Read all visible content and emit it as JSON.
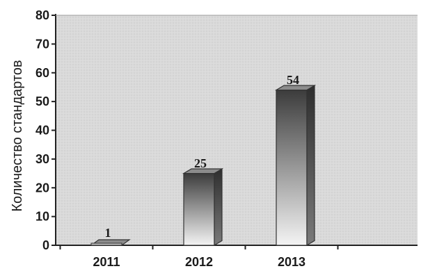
{
  "chart_data": {
    "type": "bar",
    "title": "",
    "xlabel": "",
    "ylabel": "Количество стандартов",
    "categories": [
      "2011",
      "2012",
      "2013"
    ],
    "values": [
      1,
      25,
      54
    ],
    "data_labels": [
      "1",
      "25",
      "54"
    ],
    "ylim": [
      0,
      80
    ],
    "yticks": [
      0,
      10,
      20,
      30,
      40,
      50,
      60,
      70,
      80
    ],
    "ytick_labels": [
      "0",
      "10",
      "20",
      "30",
      "40",
      "50",
      "60",
      "70",
      "80"
    ],
    "grid": false,
    "legend": "none",
    "bar_style": "3d",
    "colors": {
      "plot_background": "#d9d9d9",
      "bar_top": "#3c3c3c",
      "bar_bottom": "#f4f4f4",
      "bar_side": "#4a4a4a",
      "bar_cap": "#8c8c8c",
      "axis": "#222222"
    }
  }
}
